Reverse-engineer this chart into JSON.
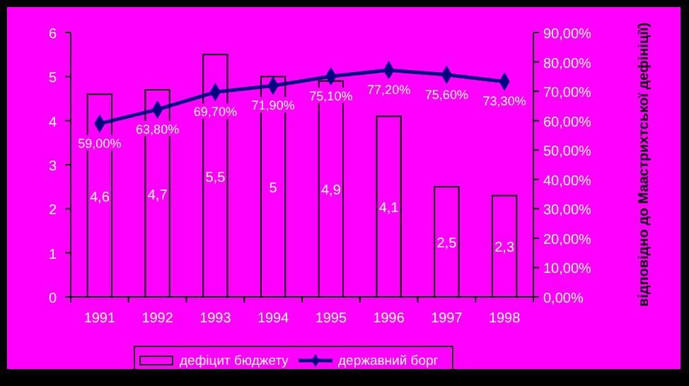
{
  "chart_data": {
    "type": "bar",
    "y2label": "відповідно до Маастрихтської дефініції)",
    "categories": [
      "1991",
      "1992",
      "1993",
      "1994",
      "1995",
      "1996",
      "1997",
      "1998"
    ],
    "series": [
      {
        "name": "дефіцит бюджету",
        "color": "#ff00ff",
        "values": [
          4.6,
          4.7,
          5.5,
          5,
          4.9,
          4.1,
          2.5,
          2.3
        ],
        "value_labels": [
          "4,6",
          "4,7",
          "5,5",
          "5",
          "4,9",
          "4,1",
          "2,5",
          "2,3"
        ]
      },
      {
        "name": "державний борг",
        "type": "line",
        "axis": "y2",
        "color": "#000080",
        "values": [
          59,
          63.8,
          69.7,
          71.9,
          75.1,
          77.2,
          75.6,
          73.3
        ],
        "value_labels": [
          "59,00%",
          "63,80%",
          "69,70%",
          "71,90%",
          "75,10%",
          "77,20%",
          "75,60%",
          "73,30%"
        ]
      }
    ],
    "ylim": [
      0,
      6
    ],
    "yticks": [
      0,
      1,
      2,
      3,
      4,
      5,
      6
    ],
    "y2lim": [
      0,
      90
    ],
    "y2ticks": [
      {
        "value": 0,
        "label": "0,00%"
      },
      {
        "value": 10,
        "label": "10,00%"
      },
      {
        "value": 20,
        "label": "20,00%"
      },
      {
        "value": 30,
        "label": "30,00%"
      },
      {
        "value": 40,
        "label": "40,00%"
      },
      {
        "value": 50,
        "label": "50,00%"
      },
      {
        "value": 60,
        "label": "60,00%"
      },
      {
        "value": 70,
        "label": "70,00%"
      },
      {
        "value": 80,
        "label": "80,00%"
      },
      {
        "value": 90,
        "label": "90,00%"
      }
    ],
    "legend": "bottom",
    "marker": "diamond",
    "grid": false
  }
}
